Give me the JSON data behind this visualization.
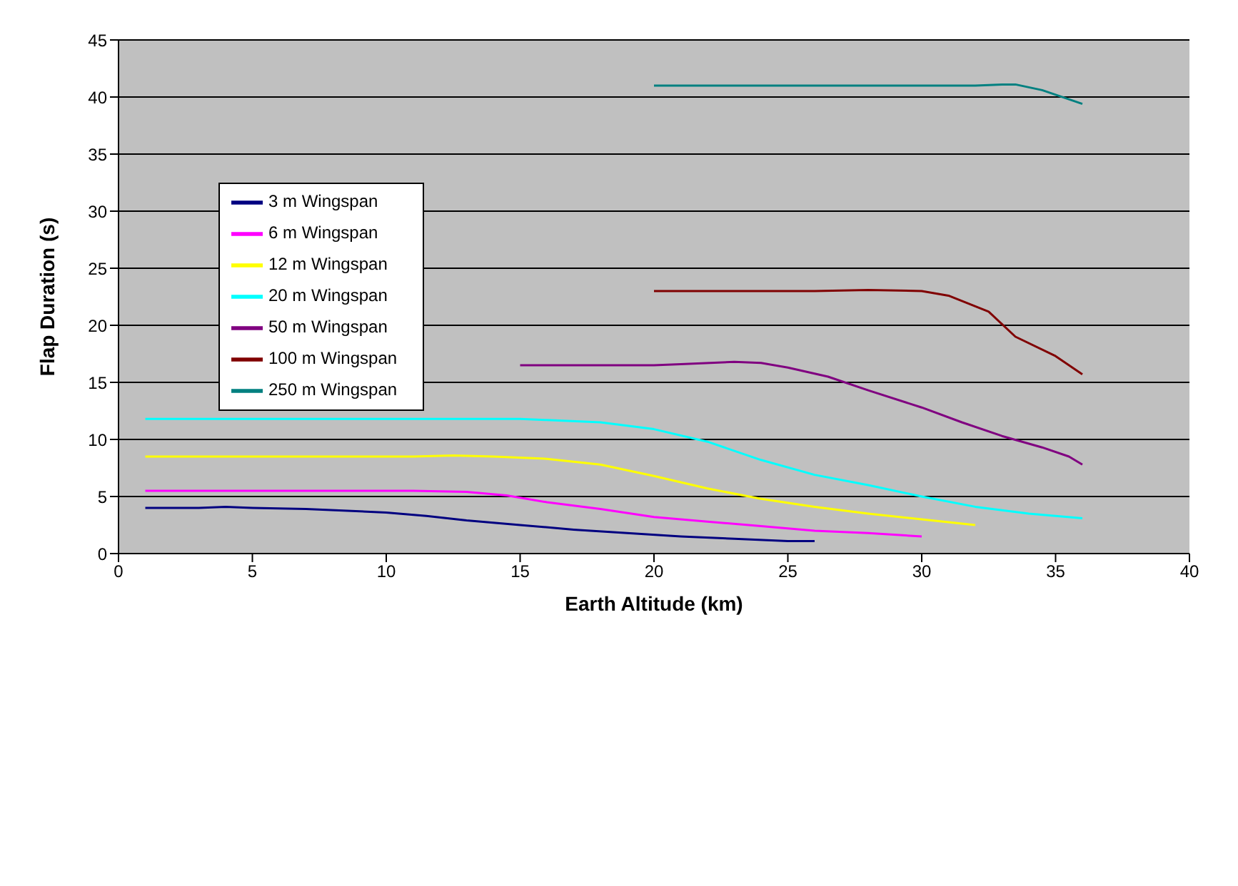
{
  "chart_data": {
    "type": "line",
    "xlabel": "Earth Altitude (km)",
    "ylabel": "Flap Duration (s)",
    "xlim": [
      0,
      40
    ],
    "xticks": [
      0,
      5,
      10,
      15,
      20,
      25,
      30,
      35,
      40
    ],
    "ylim": [
      0,
      45
    ],
    "yticks": [
      0,
      5,
      10,
      15,
      20,
      25,
      30,
      35,
      40,
      45
    ],
    "grid": "y",
    "legend": "top left",
    "marker": "none",
    "line_style": "solid",
    "series": [
      {
        "name": "3 m Wingspan",
        "color": "#000080",
        "x": [
          1,
          3,
          4,
          5,
          7,
          10,
          11.5,
          13,
          15,
          17,
          19,
          21,
          23,
          25,
          26
        ],
        "values": [
          4.0,
          4.0,
          4.1,
          4.0,
          3.9,
          3.6,
          3.3,
          2.9,
          2.5,
          2.1,
          1.8,
          1.5,
          1.3,
          1.1,
          1.1
        ]
      },
      {
        "name": "6 m Wingspan",
        "color": "#ff00ff",
        "x": [
          1,
          11,
          13,
          14.5,
          16,
          18,
          20,
          22,
          24,
          26,
          28,
          30
        ],
        "values": [
          5.5,
          5.5,
          5.4,
          5.1,
          4.5,
          3.9,
          3.2,
          2.8,
          2.4,
          2.0,
          1.8,
          1.5
        ]
      },
      {
        "name": "12 m Wingspan",
        "color": "#ffff00",
        "x": [
          1,
          11,
          12.5,
          14,
          16,
          18,
          20,
          22,
          24,
          26,
          28,
          30,
          32
        ],
        "values": [
          8.5,
          8.5,
          8.6,
          8.5,
          8.3,
          7.8,
          6.8,
          5.7,
          4.8,
          4.1,
          3.5,
          3.0,
          2.5
        ]
      },
      {
        "name": "20 m Wingspan",
        "color": "#00ffff",
        "x": [
          1,
          15,
          16,
          18,
          20,
          22,
          24,
          26,
          28,
          30,
          32,
          34,
          36
        ],
        "values": [
          11.8,
          11.8,
          11.7,
          11.5,
          10.9,
          9.8,
          8.2,
          6.9,
          6.0,
          5.0,
          4.1,
          3.5,
          3.1
        ]
      },
      {
        "name": "50 m Wingspan",
        "color": "#800080",
        "x": [
          15,
          20,
          21,
          23,
          24,
          25,
          26.5,
          28,
          30,
          31.5,
          33,
          34.5,
          35.5,
          36
        ],
        "values": [
          16.5,
          16.5,
          16.6,
          16.8,
          16.7,
          16.3,
          15.5,
          14.3,
          12.8,
          11.5,
          10.3,
          9.3,
          8.5,
          7.8
        ]
      },
      {
        "name": "100 m Wingspan",
        "color": "#800000",
        "x": [
          20,
          26,
          28,
          30,
          31,
          32.5,
          33.5,
          35,
          36
        ],
        "values": [
          23.0,
          23.0,
          23.1,
          23.0,
          22.6,
          21.2,
          19.0,
          17.3,
          15.7
        ]
      },
      {
        "name": "250 m Wingspan",
        "color": "#008080",
        "x": [
          20,
          32,
          33,
          33.5,
          34.5,
          36
        ],
        "values": [
          41.0,
          41.0,
          41.1,
          41.1,
          40.6,
          39.4
        ]
      }
    ]
  }
}
